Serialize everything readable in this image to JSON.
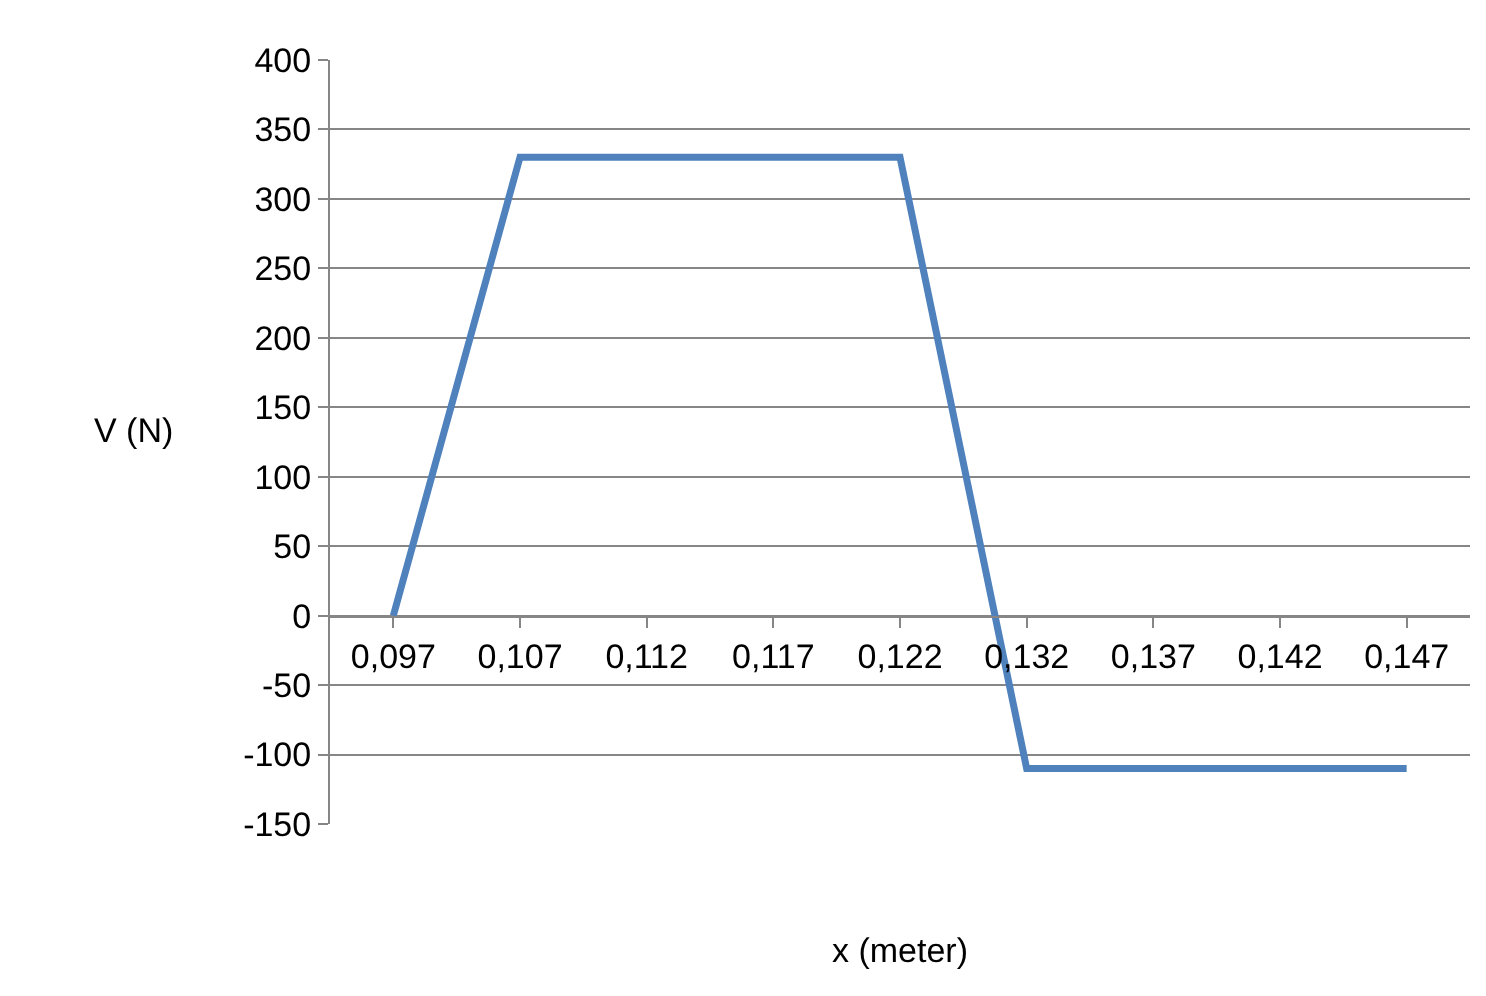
{
  "chart_data": {
    "type": "line",
    "xlabel": "x (meter)",
    "ylabel": "V (N)",
    "categories": [
      "0,097",
      "0,107",
      "0,112",
      "0,117",
      "0,122",
      "0,132",
      "0,137",
      "0,142",
      "0,147"
    ],
    "series": [
      {
        "color": "#4f81bd",
        "values": [
          0,
          330,
          330,
          330,
          330,
          -110,
          -110,
          -110,
          -110
        ]
      }
    ],
    "ylim": [
      -150,
      400
    ],
    "yticks": [
      -150,
      -100,
      -50,
      0,
      50,
      100,
      150,
      200,
      250,
      300,
      350,
      400
    ],
    "grid": "y",
    "legend": false,
    "marker": "none",
    "line_style": "solid"
  }
}
